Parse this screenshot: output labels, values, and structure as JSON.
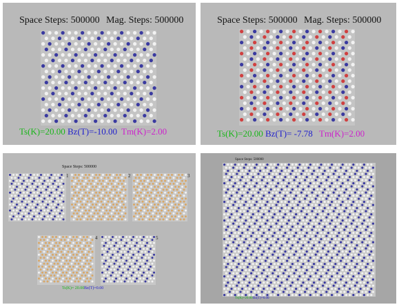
{
  "panels": [
    {
      "id": "a",
      "header_space": "Space Steps: 500000",
      "header_mag": "Mag. Steps:  500000",
      "ts": "Ts(K)=20.00",
      "bz": "Bz(T)=-10.00",
      "tm": "Tm(K)=2.00"
    },
    {
      "id": "b",
      "header_space": "Space Steps: 500000",
      "header_mag": "Mag. Steps:  500000",
      "ts": "Ts(K)=20.00",
      "bz": "Bz(T)= -7.78",
      "tm": "Tm(K)=2.00"
    },
    {
      "id": "c",
      "header_space": "Space Steps: 500000",
      "subpanels": [
        "1",
        "2",
        "3",
        "4",
        "5"
      ],
      "ts": "Ts(K)= 20.00",
      "bz": "Bz(T)=0.00"
    },
    {
      "id": "d",
      "header_space": "Space Steps: 500000",
      "ts": "Ts(K)=20.00",
      "bz": "Bz(T)=0.00"
    }
  ],
  "colors": {
    "panel_bg": "#b9b9b9",
    "ts_green": "#1bb51b",
    "bz_blue": "#2222cc",
    "tm_magenta": "#cc22cc",
    "atom_blue": "#3a3aa0",
    "atom_white": "#f2f2f2",
    "atom_orange": "#d8a868",
    "atom_red": "#d04040"
  }
}
